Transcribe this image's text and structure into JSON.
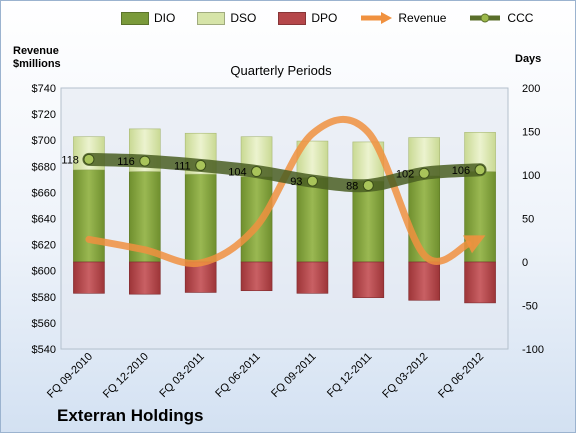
{
  "chart_data": {
    "type": "bar",
    "title": "",
    "subtitle": "Quarterly Periods",
    "company": "Exterran Holdings",
    "ylabel_left": [
      "Revenue",
      "$millions"
    ],
    "ylabel_right": "Days",
    "categories": [
      "FQ 09-2010",
      "FQ 12-2010",
      "FQ 03-2011",
      "FQ 06-2011",
      "FQ 09-2011",
      "FQ 12-2011",
      "FQ 03-2012",
      "FQ 06-2012"
    ],
    "ylim_left": [
      540,
      740
    ],
    "ylim_right": [
      -100,
      200
    ],
    "left_ticks": [
      "$740",
      "$720",
      "$700",
      "$680",
      "$660",
      "$640",
      "$620",
      "$600",
      "$580",
      "$560",
      "$540"
    ],
    "right_ticks": [
      "200",
      "150",
      "100",
      "50",
      "0",
      "-50",
      "-100"
    ],
    "legend": [
      {
        "name": "DIO",
        "kind": "bar",
        "color": "#7a9a3a"
      },
      {
        "name": "DSO",
        "kind": "bar",
        "color": "#d6e4a8"
      },
      {
        "name": "DPO",
        "kind": "bar",
        "color": "#b5474a"
      },
      {
        "name": "Revenue",
        "kind": "line",
        "color": "#f0913f"
      },
      {
        "name": "CCC",
        "kind": "line",
        "color": "#5a6e2a"
      }
    ],
    "series": [
      {
        "name": "DIO",
        "axis": "right",
        "values": [
          106,
          104,
          101,
          98,
          97,
          93,
          99,
          104
        ]
      },
      {
        "name": "DSO",
        "axis": "right",
        "values": [
          38,
          49,
          47,
          46,
          42,
          45,
          44,
          45
        ]
      },
      {
        "name": "DPO",
        "axis": "right",
        "values": [
          -36,
          -37,
          -35,
          -33,
          -36,
          -41,
          -44,
          -47
        ]
      },
      {
        "name": "Revenue",
        "axis": "left",
        "values": [
          624,
          616,
          606,
          634,
          705,
          706,
          612,
          625
        ]
      },
      {
        "name": "CCC",
        "axis": "right",
        "values": [
          118,
          116,
          111,
          104,
          93,
          88,
          102,
          106
        ]
      }
    ],
    "ccc_labels": [
      "118",
      "116",
      "111",
      "104",
      "93",
      "88",
      "102",
      "106"
    ],
    "grid": false,
    "legend_position": "top"
  }
}
